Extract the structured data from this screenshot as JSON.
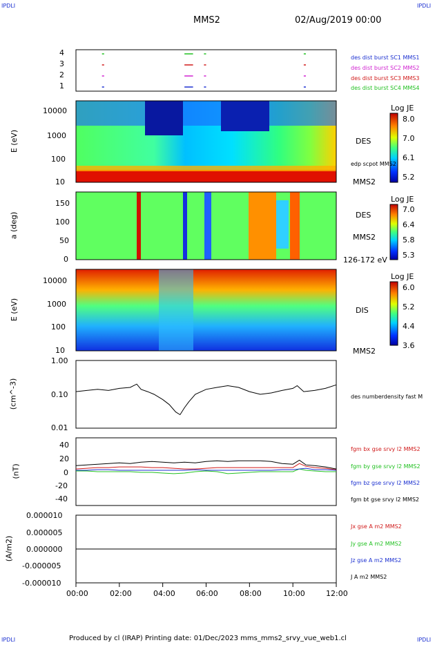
{
  "corners": {
    "tl": "IPDLI",
    "tr": "IPDLI",
    "bl": "IPDLI",
    "br": "IPDLI"
  },
  "header": {
    "spacecraft": "MMS2",
    "datetime": "02/Aug/2019 00:00"
  },
  "footer": {
    "text": "Produced by cl (IRAP)   Printing date: 01/Dec/2023   mms_mms2_srvy_vue_web1.cl"
  },
  "x_ticks": [
    "00:00",
    "02:00",
    "04:00",
    "06:00",
    "08:00",
    "10:00",
    "12:00"
  ],
  "panels": {
    "burst": {
      "y_ticks": [
        "4",
        "3",
        "2",
        "1"
      ],
      "labels": [
        "des dist burst SC1 MMS1",
        "des dist burst SC2 MMS2",
        "des dist burst SC3 MMS3",
        "des dist burst SC4 MMS4"
      ],
      "colors": [
        "#1a2fd0",
        "#d020d0",
        "#d01818",
        "#20c020"
      ]
    },
    "des_energy": {
      "ylabel": "E (eV)",
      "y_ticks": [
        "10000",
        "1000",
        "100",
        "10"
      ],
      "label": "DES",
      "label2": "edp scpot MMS2",
      "label3": "MMS2",
      "cb_title": "Log JE",
      "cb_ticks": [
        "8.0",
        "7.0",
        "6.1",
        "5.2"
      ]
    },
    "des_pitch": {
      "ylabel": "a (deg)",
      "y_ticks": [
        "150",
        "100",
        "50",
        "0"
      ],
      "label": "DES",
      "label2": "MMS2",
      "label3": "126-172 eV",
      "cb_title": "Log JE",
      "cb_ticks": [
        "7.0",
        "6.4",
        "5.8",
        "5.3"
      ]
    },
    "dis_energy": {
      "ylabel": "E (eV)",
      "y_ticks": [
        "10000",
        "1000",
        "100",
        "10"
      ],
      "label": "DIS",
      "label2": "MMS2",
      "cb_title": "Log JE",
      "cb_ticks": [
        "6.0",
        "5.2",
        "4.4",
        "3.6"
      ]
    },
    "density": {
      "ylabel": "(cm^-3)",
      "y_ticks": [
        "1.00",
        "0.10",
        "0.01"
      ],
      "label": "des numberdensity fast M"
    },
    "fgm": {
      "ylabel": "(nT)",
      "y_ticks": [
        "40",
        "20",
        "0",
        "-20",
        "-40"
      ],
      "labels": [
        "fgm bx gse srvy l2 MMS2",
        "fgm by gse srvy l2 MMS2",
        "fgm bz gse srvy l2 MMS2",
        "fgm bt gse srvy l2 MMS2"
      ],
      "colors": [
        "#d01818",
        "#20c020",
        "#1a2fd0",
        "#000000"
      ]
    },
    "current": {
      "ylabel": "(A/m2)",
      "y_ticks": [
        "0.000010",
        "0.000005",
        "0.000000",
        "-0.000005",
        "-0.000010"
      ],
      "labels": [
        "Jx gse A m2 MMS2",
        "Jy gse A m2 MMS2",
        "Jz gse A m2 MMS2",
        "J A m2 MMS2"
      ],
      "colors": [
        "#d01818",
        "#20c020",
        "#1a2fd0",
        "#000000"
      ]
    }
  },
  "chart_data": {
    "type": "line",
    "xlim_hours": [
      0,
      12
    ],
    "density": {
      "ylim": [
        0.01,
        1.0
      ],
      "log": true,
      "x": [
        0,
        0.5,
        1,
        1.5,
        2,
        2.5,
        2.8,
        3,
        3.3,
        3.6,
        4,
        4.3,
        4.6,
        4.8,
        5,
        5.2,
        5.5,
        6,
        6.5,
        7,
        7.5,
        8,
        8.5,
        9,
        9.5,
        10,
        10.2,
        10.5,
        11,
        11.5,
        12
      ],
      "y": [
        0.12,
        0.13,
        0.14,
        0.13,
        0.15,
        0.16,
        0.2,
        0.14,
        0.12,
        0.1,
        0.07,
        0.05,
        0.03,
        0.025,
        0.04,
        0.06,
        0.1,
        0.14,
        0.16,
        0.18,
        0.16,
        0.12,
        0.1,
        0.11,
        0.13,
        0.15,
        0.18,
        0.12,
        0.13,
        0.15,
        0.19
      ]
    },
    "fgm": {
      "ylim": [
        -50,
        50
      ],
      "x": [
        0,
        0.5,
        1,
        1.5,
        2,
        2.5,
        3,
        3.5,
        4,
        4.5,
        5,
        5.5,
        6,
        6.5,
        7,
        7.5,
        8,
        8.5,
        9,
        9.5,
        10,
        10.3,
        10.6,
        11,
        11.5,
        12
      ],
      "series": [
        {
          "name": "fgm bx gse srvy l2 MMS2",
          "values": [
            4,
            5,
            6,
            6,
            7,
            7,
            7,
            6,
            6,
            5,
            4,
            4,
            5,
            6,
            6,
            6,
            6,
            6,
            6,
            6,
            6,
            12,
            8,
            6,
            5,
            3
          ]
        },
        {
          "name": "fgm by gse srvy l2 MMS2",
          "values": [
            1,
            1,
            0,
            0,
            0,
            0,
            -1,
            -1,
            -2,
            -3,
            -2,
            0,
            1,
            0,
            -3,
            -2,
            -1,
            0,
            0,
            0,
            0,
            4,
            2,
            1,
            0,
            0
          ]
        },
        {
          "name": "fgm bz gse srvy l2 MMS2",
          "values": [
            2,
            2,
            3,
            3,
            2,
            2,
            2,
            2,
            2,
            2,
            2,
            3,
            2,
            2,
            2,
            2,
            2,
            2,
            2,
            3,
            3,
            4,
            5,
            3,
            3,
            2
          ]
        },
        {
          "name": "fgm bt gse srvy l2 MMS2",
          "values": [
            9,
            10,
            11,
            12,
            13,
            12,
            14,
            15,
            14,
            13,
            14,
            13,
            15,
            16,
            15,
            16,
            16,
            16,
            15,
            12,
            11,
            17,
            10,
            9,
            7,
            4
          ]
        }
      ]
    },
    "current": {
      "ylim": [
        -1e-05,
        1e-05
      ],
      "values_near": 0.0
    }
  }
}
